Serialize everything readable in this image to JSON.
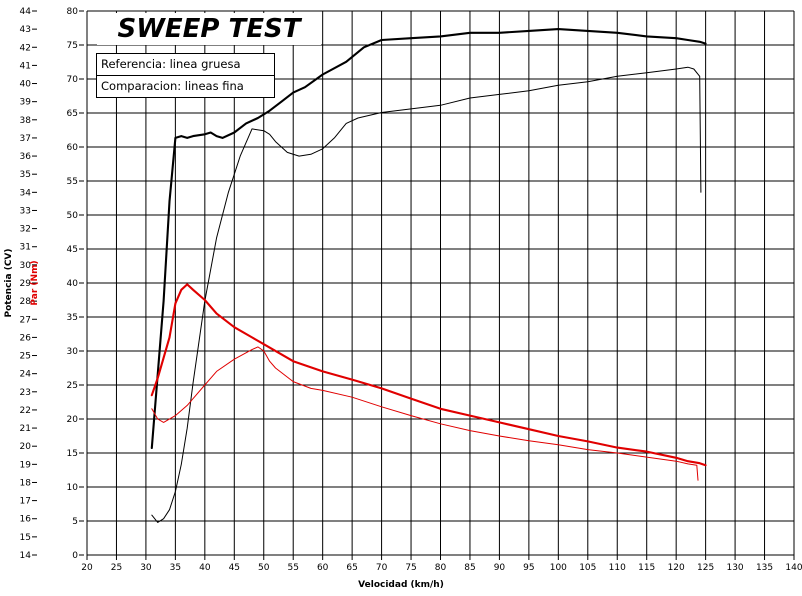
{
  "chart_data": {
    "type": "line",
    "title": "SWEEP TEST",
    "legend": [
      "Referencia: linea gruesa",
      "Comparacion: lineas fina"
    ],
    "xlabel": "Velocidad (km/h)",
    "ylabel_left": "Potencia (CV)",
    "ylabel_right": "Par (Nm)",
    "xlim": [
      20,
      140
    ],
    "ylim_left": [
      14,
      44
    ],
    "ylim_right": [
      0,
      80
    ],
    "x_ticks": [
      20,
      25,
      30,
      35,
      40,
      45,
      50,
      55,
      60,
      65,
      70,
      75,
      80,
      85,
      90,
      95,
      100,
      105,
      110,
      115,
      120,
      125,
      130,
      135,
      140
    ],
    "y_ticks_left": [
      14,
      15,
      16,
      17,
      18,
      19,
      20,
      21,
      22,
      23,
      24,
      25,
      26,
      27,
      28,
      29,
      30,
      31,
      32,
      33,
      34,
      35,
      36,
      37,
      38,
      39,
      40,
      41,
      42,
      43,
      44
    ],
    "y_ticks_right": [
      0,
      5,
      10,
      15,
      20,
      25,
      30,
      35,
      40,
      45,
      50,
      55,
      60,
      65,
      70,
      75,
      80
    ],
    "grid": true,
    "colors": {
      "potencia": "#000000",
      "par": "#e00000",
      "grid": "#000000"
    },
    "series": [
      {
        "name": "Referencia",
        "quantity": "Potencia",
        "axis": "left",
        "width": "thick",
        "x": [
          31,
          33,
          34,
          35,
          36,
          37,
          38,
          40,
          41,
          42,
          43,
          45,
          47,
          49,
          50,
          51,
          53,
          55,
          57,
          60,
          64,
          67,
          70,
          75,
          80,
          85,
          90,
          95,
          100,
          105,
          110,
          115,
          120,
          122,
          124,
          125
        ],
        "y": [
          19.9,
          28,
          33.5,
          37,
          37.1,
          37,
          37.1,
          37.2,
          37.3,
          37.1,
          37.0,
          37.3,
          37.8,
          38.1,
          38.3,
          38.5,
          39.0,
          39.5,
          39.8,
          40.5,
          41.2,
          42.0,
          42.4,
          42.5,
          42.6,
          42.8,
          42.8,
          42.9,
          43.0,
          42.9,
          42.8,
          42.6,
          42.5,
          42.4,
          42.3,
          42.2
        ]
      },
      {
        "name": "Comparacion",
        "quantity": "Potencia",
        "axis": "left",
        "width": "thin",
        "x": [
          31,
          32,
          33,
          34,
          35,
          36,
          37,
          38,
          40,
          42,
          44,
          46,
          48,
          50,
          51,
          52,
          54,
          56,
          58,
          60,
          62,
          64,
          66,
          70,
          75,
          80,
          85,
          90,
          95,
          100,
          105,
          110,
          115,
          120,
          122,
          123,
          124,
          124.2
        ],
        "y": [
          16.2,
          15.8,
          16.0,
          16.5,
          17.5,
          19,
          21,
          23.5,
          28,
          31.5,
          34,
          36,
          37.5,
          37.4,
          37.2,
          36.8,
          36.2,
          36.0,
          36.1,
          36.4,
          37.0,
          37.8,
          38.1,
          38.4,
          38.6,
          38.8,
          39.2,
          39.4,
          39.6,
          39.9,
          40.1,
          40.4,
          40.6,
          40.8,
          40.9,
          40.8,
          40.4,
          34.0
        ]
      },
      {
        "name": "Referencia",
        "quantity": "Par",
        "axis": "right",
        "width": "thick",
        "x": [
          31,
          32,
          33,
          34,
          35,
          36,
          37,
          38,
          40,
          42,
          45,
          48,
          50,
          55,
          60,
          65,
          70,
          75,
          80,
          85,
          90,
          95,
          100,
          105,
          110,
          115,
          120,
          122,
          124,
          125
        ],
        "y": [
          23.5,
          26,
          29,
          32,
          37,
          39,
          39.8,
          39,
          37.5,
          35.5,
          33.5,
          32,
          31,
          28.5,
          27,
          25.8,
          24.5,
          23,
          21.5,
          20.5,
          19.5,
          18.5,
          17.5,
          16.7,
          15.8,
          15.2,
          14.3,
          13.8,
          13.5,
          13.2
        ]
      },
      {
        "name": "Comparacion",
        "quantity": "Par",
        "axis": "right",
        "width": "thin",
        "x": [
          31,
          32,
          33,
          35,
          37,
          38,
          40,
          42,
          45,
          48,
          49,
          50,
          51,
          52,
          55,
          58,
          60,
          65,
          70,
          75,
          80,
          85,
          90,
          95,
          100,
          105,
          110,
          115,
          120,
          122,
          123.5,
          123.7
        ],
        "y": [
          21.5,
          20,
          19.5,
          20.5,
          22,
          23,
          25,
          27,
          28.8,
          30.2,
          30.6,
          30.0,
          28.5,
          27.5,
          25.5,
          24.5,
          24.2,
          23.2,
          21.8,
          20.5,
          19.3,
          18.3,
          17.5,
          16.8,
          16.2,
          15.5,
          15.0,
          14.4,
          13.8,
          13.4,
          13.2,
          11.0
        ]
      }
    ]
  }
}
